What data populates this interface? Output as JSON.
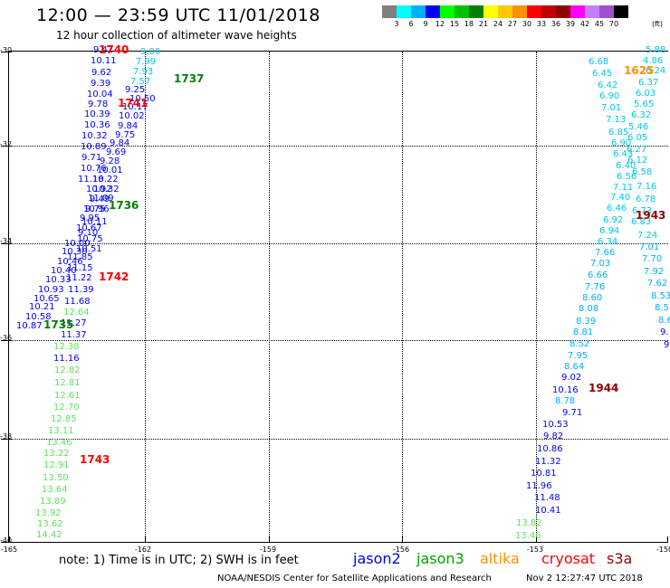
{
  "title": "12:00 — 23:59 UTC 11/01/2018",
  "subtitle": "12 hour collection of altimeter wave heights",
  "color_scale": {
    "colors": [
      "#808080",
      "#00ffff",
      "#00b0ff",
      "#0000ff",
      "#00ff00",
      "#00c000",
      "#008000",
      "#ffff00",
      "#ffc800",
      "#ff9000",
      "#ff0000",
      "#c00000",
      "#900000",
      "#ff00ff",
      "#c080ff",
      "#a050d0",
      "#000000"
    ],
    "labels": [
      "3",
      "6",
      "9",
      "12",
      "15",
      "18",
      "21",
      "24",
      "27",
      "30",
      "33",
      "36",
      "39",
      "42",
      "45",
      "70"
    ],
    "unit": "(ft)"
  },
  "axes": {
    "y_labels": [
      "-30",
      "-32",
      "-34",
      "-36",
      "-38",
      "-40"
    ],
    "x_labels": [
      "-165",
      "-162",
      "-159",
      "-156",
      "-153",
      "-150"
    ]
  },
  "heights": [
    {
      "v": "9.42",
      "c": "#0000ff"
    },
    {
      "v": "10.11",
      "c": "#0000ff"
    },
    {
      "v": "9.62",
      "c": "#0000ff"
    },
    {
      "v": "9.39",
      "c": "#0000ff"
    },
    {
      "v": "10.04",
      "c": "#0000ff"
    },
    {
      "v": "9.78",
      "c": "#0000ff"
    },
    {
      "v": "10.39",
      "c": "#0000ff"
    },
    {
      "v": "10.36",
      "c": "#0000ff"
    },
    {
      "v": "10.32",
      "c": "#0000ff"
    },
    {
      "v": "10.89",
      "c": "#0000ff"
    },
    {
      "v": "9.71",
      "c": "#0000ff"
    },
    {
      "v": "10.76",
      "c": "#0000ff"
    },
    {
      "v": "11.18",
      "c": "#0000ff"
    },
    {
      "v": "10.92",
      "c": "#0000ff"
    },
    {
      "v": "11.09",
      "c": "#0000ff"
    },
    {
      "v": "10.96",
      "c": "#0000ff"
    },
    {
      "v": "10.11",
      "c": "#0000ff"
    },
    {
      "v": "9.10",
      "c": "#0000ff"
    },
    {
      "v": "10.00",
      "c": "#0000ff"
    },
    {
      "v": "10.30",
      "c": "#0000ff"
    },
    {
      "v": "10.46",
      "c": "#0000ff"
    },
    {
      "v": "10.40",
      "c": "#0000ff"
    },
    {
      "v": "10.33",
      "c": "#0000ff"
    },
    {
      "v": "10.93",
      "c": "#0000ff"
    },
    {
      "v": "10.65",
      "c": "#0000ff"
    },
    {
      "v": "10.21",
      "c": "#0000ff"
    },
    {
      "v": "10.58",
      "c": "#0000ff"
    },
    {
      "v": "10.87",
      "c": "#0000ff"
    },
    {
      "v": "9.00",
      "c": "#00c8e6"
    },
    {
      "v": "7.99",
      "c": "#00c8e6"
    },
    {
      "v": "7.93",
      "c": "#00c8e6"
    },
    {
      "v": "7.57",
      "c": "#00c8e6"
    },
    {
      "v": "9.25",
      "c": "#0000ff"
    },
    {
      "v": "10.50",
      "c": "#0000ff"
    },
    {
      "v": "10.17",
      "c": "#0000ff"
    },
    {
      "v": "10.02",
      "c": "#0000ff"
    },
    {
      "v": "9.84",
      "c": "#0000ff"
    },
    {
      "v": "9.75",
      "c": "#0000ff"
    },
    {
      "v": "9.84",
      "c": "#0000ff"
    },
    {
      "v": "9.69",
      "c": "#0000ff"
    },
    {
      "v": "9.28",
      "c": "#0000ff"
    },
    {
      "v": "10.01",
      "c": "#0000ff"
    },
    {
      "v": "10.22",
      "c": "#0000ff"
    },
    {
      "v": "10.32",
      "c": "#0000ff"
    },
    {
      "v": "9.49",
      "c": "#0000ff"
    },
    {
      "v": "9.75",
      "c": "#0000ff"
    },
    {
      "v": "9.95",
      "c": "#0000ff"
    },
    {
      "v": "10.67",
      "c": "#0000ff"
    },
    {
      "v": "10.75",
      "c": "#0000ff"
    },
    {
      "v": "10.51",
      "c": "#0000ff"
    },
    {
      "v": "11.85",
      "c": "#0000ff"
    },
    {
      "v": "11.15",
      "c": "#0000ff"
    },
    {
      "v": "11.22",
      "c": "#0000ff"
    },
    {
      "v": "11.39",
      "c": "#0000ff"
    },
    {
      "v": "11.68",
      "c": "#0000ff"
    },
    {
      "v": "12.64",
      "c": "#60e060"
    },
    {
      "v": "11.27",
      "c": "#0000ff"
    },
    {
      "v": "11.37",
      "c": "#0000ff"
    },
    {
      "v": "12.38",
      "c": "#60e060"
    },
    {
      "v": "11.16",
      "c": "#0000ff"
    },
    {
      "v": "12.82",
      "c": "#60e060"
    },
    {
      "v": "12.81",
      "c": "#60e060"
    },
    {
      "v": "12.61",
      "c": "#60e060"
    },
    {
      "v": "12.70",
      "c": "#60e060"
    },
    {
      "v": "12.85",
      "c": "#60e060"
    },
    {
      "v": "13.11",
      "c": "#60e060"
    },
    {
      "v": "13.46",
      "c": "#60e060"
    },
    {
      "v": "13.22",
      "c": "#60e060"
    },
    {
      "v": "12.91",
      "c": "#60e060"
    },
    {
      "v": "13.50",
      "c": "#60e060"
    },
    {
      "v": "13.64",
      "c": "#60e060"
    },
    {
      "v": "13.89",
      "c": "#60e060"
    },
    {
      "v": "13.92",
      "c": "#60e060"
    },
    {
      "v": "13.62",
      "c": "#60e060"
    },
    {
      "v": "14.42",
      "c": "#60e060"
    },
    {
      "v": "6.68",
      "c": "#00c8e6"
    },
    {
      "v": "6.45",
      "c": "#00c8e6"
    },
    {
      "v": "6.42",
      "c": "#00c8e6"
    },
    {
      "v": "6.90",
      "c": "#00c8e6"
    },
    {
      "v": "7.01",
      "c": "#00c8e6"
    },
    {
      "v": "7.13",
      "c": "#00c8e6"
    },
    {
      "v": "6.85",
      "c": "#00c8e6"
    },
    {
      "v": "6.90",
      "c": "#00c8e6"
    },
    {
      "v": "6.43",
      "c": "#00c8e6"
    },
    {
      "v": "6.40",
      "c": "#00c8e6"
    },
    {
      "v": "6.56",
      "c": "#00c8e6"
    },
    {
      "v": "7.11",
      "c": "#00c8e6"
    },
    {
      "v": "7.40",
      "c": "#00c8e6"
    },
    {
      "v": "6.46",
      "c": "#00c8e6"
    },
    {
      "v": "6.92",
      "c": "#00c8e6"
    },
    {
      "v": "6.94",
      "c": "#00c8e6"
    },
    {
      "v": "6.34",
      "c": "#00c8e6"
    },
    {
      "v": "7.66",
      "c": "#00b0ff"
    },
    {
      "v": "7.03",
      "c": "#00b0ff"
    },
    {
      "v": "6.66",
      "c": "#00b0ff"
    },
    {
      "v": "7.76",
      "c": "#00b0ff"
    },
    {
      "v": "8.60",
      "c": "#00b0ff"
    },
    {
      "v": "8.08",
      "c": "#00b0ff"
    },
    {
      "v": "8.39",
      "c": "#00b0ff"
    },
    {
      "v": "8.81",
      "c": "#00b0ff"
    },
    {
      "v": "8.52",
      "c": "#00b0ff"
    },
    {
      "v": "7.95",
      "c": "#00b0ff"
    },
    {
      "v": "8.64",
      "c": "#00b0ff"
    },
    {
      "v": "9.02",
      "c": "#0000ff"
    },
    {
      "v": "10.16",
      "c": "#0000ff"
    },
    {
      "v": "8.78",
      "c": "#00b0ff"
    },
    {
      "v": "9.71",
      "c": "#0000ff"
    },
    {
      "v": "10.53",
      "c": "#0000ff"
    },
    {
      "v": "9.82",
      "c": "#0000ff"
    },
    {
      "v": "10.86",
      "c": "#0000ff"
    },
    {
      "v": "11.32",
      "c": "#0000ff"
    },
    {
      "v": "10.81",
      "c": "#0000ff"
    },
    {
      "v": "11.96",
      "c": "#0000ff"
    },
    {
      "v": "11.48",
      "c": "#0000ff"
    },
    {
      "v": "10.41",
      "c": "#0000ff"
    },
    {
      "v": "13.82",
      "c": "#60e060"
    },
    {
      "v": "13.46",
      "c": "#60e060"
    },
    {
      "v": "5.88",
      "c": "#00c8e6"
    },
    {
      "v": "4.86",
      "c": "#00c8e6"
    },
    {
      "v": "6.24",
      "c": "#00c8e6"
    },
    {
      "v": "6.37",
      "c": "#00c8e6"
    },
    {
      "v": "6.03",
      "c": "#00c8e6"
    },
    {
      "v": "5.65",
      "c": "#00c8e6"
    },
    {
      "v": "6.32",
      "c": "#00c8e6"
    },
    {
      "v": "5.46",
      "c": "#00c8e6"
    },
    {
      "v": "6.05",
      "c": "#00c8e6"
    },
    {
      "v": "6.27",
      "c": "#00c8e6"
    },
    {
      "v": "6.12",
      "c": "#00c8e6"
    },
    {
      "v": "6.58",
      "c": "#00c8e6"
    },
    {
      "v": "7.16",
      "c": "#00c8e6"
    },
    {
      "v": "6.78",
      "c": "#00c8e6"
    },
    {
      "v": "6.73",
      "c": "#00c8e6"
    },
    {
      "v": "6.83",
      "c": "#00c8e6"
    },
    {
      "v": "7.24",
      "c": "#00c8e6"
    },
    {
      "v": "7.01",
      "c": "#00b0ff"
    },
    {
      "v": "7.70",
      "c": "#00b0ff"
    },
    {
      "v": "7.92",
      "c": "#00b0ff"
    },
    {
      "v": "7.62",
      "c": "#00b0ff"
    },
    {
      "v": "8.53",
      "c": "#00b0ff"
    },
    {
      "v": "8.5",
      "c": "#00b0ff"
    },
    {
      "v": "8.6",
      "c": "#00b0ff"
    },
    {
      "v": "9.",
      "c": "#0000ff"
    },
    {
      "v": "9",
      "c": "#0000ff"
    }
  ],
  "time_labels": [
    {
      "t": "1740",
      "c": "#ff0000"
    },
    {
      "t": "1737",
      "c": "#008000"
    },
    {
      "t": "1741",
      "c": "#ff0000"
    },
    {
      "t": "1736",
      "c": "#008000"
    },
    {
      "t": "1742",
      "c": "#ff0000"
    },
    {
      "t": "1735",
      "c": "#008000"
    },
    {
      "t": "1743",
      "c": "#ff0000"
    },
    {
      "t": "1625",
      "c": "#ff9000"
    },
    {
      "t": "1943",
      "c": "#900000"
    },
    {
      "t": "1944",
      "c": "#900000"
    }
  ],
  "note": "note: 1) Time is in UTC; 2) SWH is in feet",
  "legend": [
    {
      "name": "jason2",
      "color": "#0000ff"
    },
    {
      "name": "jason3",
      "color": "#00a000"
    },
    {
      "name": "altika",
      "color": "#ff9000"
    },
    {
      "name": "cryosat",
      "color": "#ff0000"
    },
    {
      "name": "s3a",
      "color": "#900000"
    }
  ],
  "credit": "NOAA/NESDIS Center for Satellite Applications and Research",
  "credit_time": "Nov  2 12:27:47 UTC 2018"
}
